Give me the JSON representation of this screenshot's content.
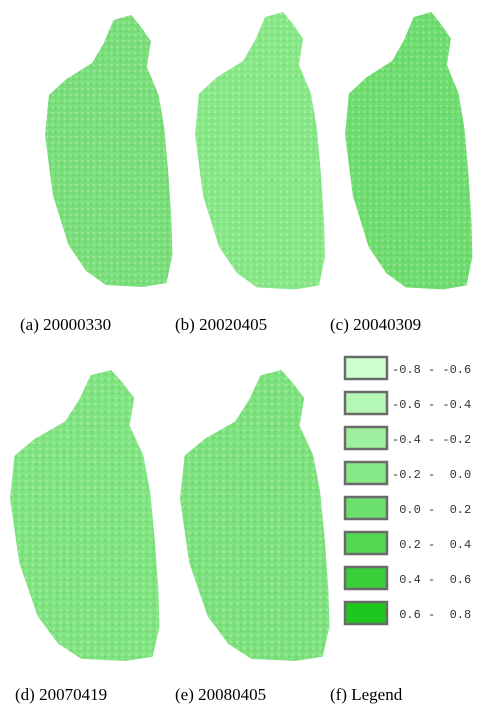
{
  "panels": [
    {
      "caption": "(a) 20000330"
    },
    {
      "caption": "(b) 20020405"
    },
    {
      "caption": "(c) 20040309"
    },
    {
      "caption": "(d) 20070419"
    },
    {
      "caption": "(e) 20080405"
    }
  ],
  "legend": {
    "caption": "(f) Legend",
    "items": [
      {
        "label": "-0.8 - -0.6",
        "color": "#ccffcc"
      },
      {
        "label": "-0.6 - -0.4",
        "color": "#b5f7b5"
      },
      {
        "label": "-0.4 - -0.2",
        "color": "#9ef09e"
      },
      {
        "label": "-0.2 -  0.0",
        "color": "#86e886"
      },
      {
        "label": " 0.0 -  0.2",
        "color": "#6ce06c"
      },
      {
        "label": " 0.2 -  0.4",
        "color": "#52d852"
      },
      {
        "label": " 0.4 -  0.6",
        "color": "#38cf38"
      },
      {
        "label": " 0.6 -  0.8",
        "color": "#1ec61e"
      }
    ]
  }
}
